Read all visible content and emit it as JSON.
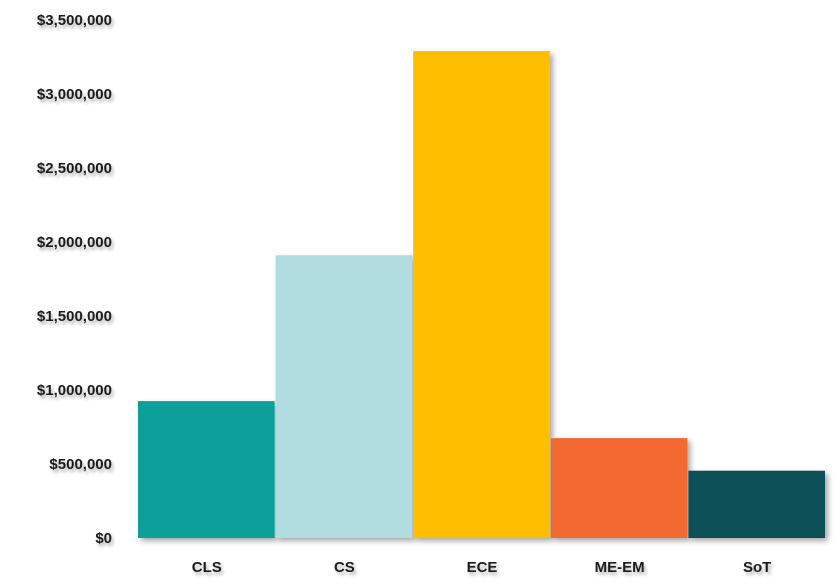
{
  "chart_data": {
    "type": "bar",
    "categories": [
      "CLS",
      "CS",
      "ECE",
      "ME-EM",
      "SoT"
    ],
    "values": [
      925000,
      1910000,
      3290000,
      675000,
      455000
    ],
    "colors": [
      "#0e9f9a",
      "#b2dde0",
      "#ffbf00",
      "#f26b30",
      "#0d4f57"
    ],
    "ylim": [
      0,
      3500000
    ],
    "yticks": [
      0,
      500000,
      1000000,
      1500000,
      2000000,
      2500000,
      3000000,
      3500000
    ],
    "ytick_labels": [
      "$0",
      "$500,000",
      "$1,000,000",
      "$1,500,000",
      "$2,000,000",
      "$2,500,000",
      "$3,000,000",
      "$3,500,000"
    ],
    "grid": false,
    "legend": "none",
    "title": "",
    "xlabel": "",
    "ylabel": ""
  }
}
